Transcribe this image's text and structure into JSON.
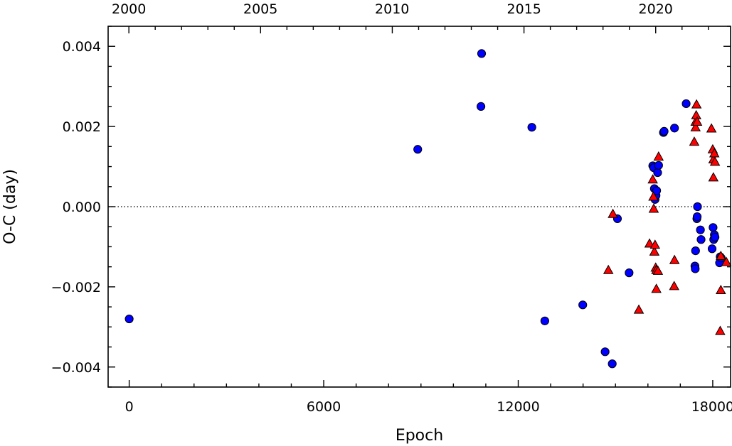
{
  "chart_data": {
    "type": "scatter",
    "xlabel": "Epoch",
    "ylabel": "O-C (day)",
    "xlim": [
      -650,
      18550
    ],
    "ylim": [
      -0.0045,
      0.0045
    ],
    "x_ticks": [
      0,
      6000,
      12000,
      18000
    ],
    "x_tick_labels": [
      "0",
      "6000",
      "12000",
      "18000"
    ],
    "y_ticks": [
      0.004,
      0.002,
      0.0,
      -0.002,
      -0.004
    ],
    "y_tick_labels": [
      "0.004",
      "0.002",
      "0.000",
      "−0.002",
      "−0.004"
    ],
    "top_axis": {
      "label_epochs": [
        -10,
        4050,
        8110,
        12180,
        16240
      ],
      "labels": [
        "2000",
        "2005",
        "2010",
        "2015",
        "2020"
      ]
    },
    "reference_line": {
      "y": 0.0,
      "style": "dotted"
    },
    "grid": false,
    "series": [
      {
        "marker": "circle",
        "color": "#0000ff",
        "points": [
          [
            0,
            -0.0028
          ],
          [
            8900,
            0.00143
          ],
          [
            10850,
            0.0025
          ],
          [
            10870,
            0.00382
          ],
          [
            12420,
            0.00198
          ],
          [
            12820,
            -0.00285
          ],
          [
            13990,
            -0.00245
          ],
          [
            14680,
            -0.00362
          ],
          [
            14900,
            -0.00392
          ],
          [
            15060,
            -0.0003
          ],
          [
            15420,
            -0.00165
          ],
          [
            16150,
            0.00102
          ],
          [
            16180,
            0.00097
          ],
          [
            16200,
            0.00045
          ],
          [
            16220,
            0.00018
          ],
          [
            16250,
            0.00028
          ],
          [
            16270,
            0.0004
          ],
          [
            16300,
            0.00085
          ],
          [
            16330,
            0.00103
          ],
          [
            16480,
            0.00185
          ],
          [
            16500,
            0.00188
          ],
          [
            16820,
            0.00196
          ],
          [
            17180,
            0.00257
          ],
          [
            17450,
            -0.00148
          ],
          [
            17460,
            -0.00155
          ],
          [
            17470,
            -0.0011
          ],
          [
            17510,
            -0.0003
          ],
          [
            17520,
            -0.00025
          ],
          [
            17530,
            0.0
          ],
          [
            17620,
            -0.00058
          ],
          [
            17640,
            -0.00082
          ],
          [
            17980,
            -0.00105
          ],
          [
            18010,
            -0.00052
          ],
          [
            18030,
            -0.00082
          ],
          [
            18050,
            -0.0007
          ],
          [
            18070,
            -0.00076
          ],
          [
            18210,
            -0.0014
          ],
          [
            18230,
            -0.00125
          ],
          [
            18260,
            -0.00128
          ]
        ]
      },
      {
        "marker": "triangle",
        "color": "#ff0000",
        "points": [
          [
            14780,
            -0.00158
          ],
          [
            14920,
            -0.00018
          ],
          [
            15720,
            -0.00257
          ],
          [
            16050,
            -0.00092
          ],
          [
            16150,
            0.00068
          ],
          [
            16170,
            0.00025
          ],
          [
            16180,
            -5e-05
          ],
          [
            16200,
            -0.00112
          ],
          [
            16220,
            -0.00095
          ],
          [
            16240,
            -0.00152
          ],
          [
            16260,
            -0.00158
          ],
          [
            16260,
            -0.00205
          ],
          [
            16310,
            -0.0016
          ],
          [
            16330,
            0.00125
          ],
          [
            16810,
            -0.00198
          ],
          [
            16820,
            -0.00133
          ],
          [
            17430,
            0.00162
          ],
          [
            17470,
            0.00212
          ],
          [
            17470,
            0.00198
          ],
          [
            17490,
            0.00228
          ],
          [
            17500,
            0.00255
          ],
          [
            17520,
            0.00212
          ],
          [
            17960,
            0.00195
          ],
          [
            18000,
            0.00143
          ],
          [
            18020,
            0.00118
          ],
          [
            18020,
            0.00073
          ],
          [
            18050,
            0.00133
          ],
          [
            18070,
            0.00112
          ],
          [
            18230,
            -0.0031
          ],
          [
            18250,
            -0.00208
          ],
          [
            18250,
            -0.00123
          ],
          [
            18420,
            -0.00138
          ]
        ]
      }
    ]
  }
}
